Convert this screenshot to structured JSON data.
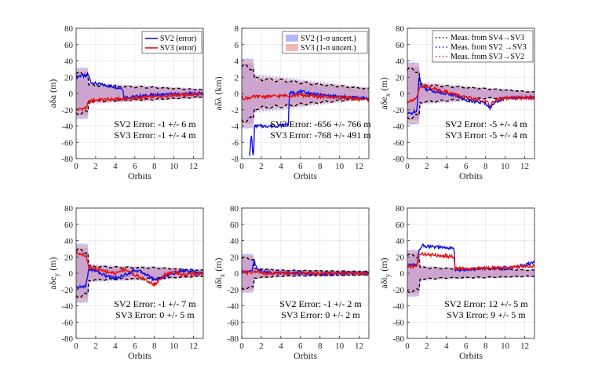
{
  "colors": {
    "sv2": "#1010e0",
    "sv3": "#e81010",
    "sv2_band": "#b6b6f6",
    "sv3_band": "#f6b6b6",
    "overlap_band": "#c6a0cf",
    "dashed": "#000000",
    "grid": "#e6e6e6"
  },
  "legends": {
    "error": [
      "SV2 (error)",
      "SV3 (error)"
    ],
    "uncert": [
      "SV2 (1-σ uncert.)",
      "SV3 (1-σ uncert.)"
    ],
    "meas": [
      "Meas. from SV4→SV3",
      "Meas. from SV2 →SV3",
      "Meas. from SV3→SV2"
    ]
  },
  "chart_data": [
    {
      "type": "line",
      "xlabel": "Orbits",
      "ylabel": "aδa (m)",
      "xlim": [
        0,
        13
      ],
      "ylim": [
        -80,
        80
      ],
      "xticks": [
        0,
        2,
        4,
        6,
        8,
        10,
        12
      ],
      "yticks": [
        -80,
        -60,
        -40,
        -20,
        0,
        20,
        40,
        60,
        80
      ],
      "legend": "error",
      "annotation": [
        "SV2 Error: -1 +/- 6 m",
        "SV3 Error: -1 +/- 4 m"
      ],
      "series": [
        {
          "name": "SV2",
          "x": [
            0,
            0.5,
            1.0,
            1.2,
            1.5,
            2.0,
            3.0,
            4.0,
            4.8,
            4.85,
            6.0,
            8.0,
            10.0,
            13.0
          ],
          "y": [
            20,
            22,
            21,
            25,
            14,
            12,
            10,
            8,
            6,
            -5,
            -4,
            -2,
            -1,
            0
          ]
        },
        {
          "name": "SV3",
          "x": [
            0,
            0.5,
            1.0,
            1.3,
            2.0,
            4.0,
            6.0,
            8.0,
            10.0,
            13.0
          ],
          "y": [
            -20,
            -19,
            -18,
            -10,
            -8,
            -7,
            -6,
            -4,
            -2,
            -1
          ]
        }
      ],
      "band": {
        "x": [
          0,
          1.2,
          1.3,
          4,
          8,
          13
        ],
        "halfwidth": [
          33,
          33,
          14,
          12,
          10,
          6
        ],
        "center": [
          0,
          0,
          0,
          0,
          0,
          0
        ]
      }
    },
    {
      "type": "line",
      "xlabel": "Orbits",
      "ylabel": "aδλ (km)",
      "xlim": [
        0,
        13
      ],
      "ylim": [
        -8,
        8
      ],
      "xticks": [
        0,
        2,
        4,
        6,
        8,
        10,
        12
      ],
      "yticks": [
        -8,
        -6,
        -4,
        -2,
        0,
        2,
        4,
        6,
        8
      ],
      "legend": "uncert",
      "annotation": [
        "SV2 Error: -656 +/- 766 m",
        "SV3 Error: -768 +/- 491 m"
      ],
      "series": [
        {
          "name": "SV2",
          "x": [
            0.8,
            1.0,
            1.1,
            1.2,
            1.3,
            1.35,
            3.0,
            3.5,
            4.8,
            4.85,
            6.0,
            8.0,
            10.0,
            13.0
          ],
          "y": [
            -7.5,
            -5,
            -7,
            -8,
            -4,
            -4,
            -4,
            -4,
            -3.8,
            0,
            0.2,
            -0.2,
            -0.4,
            -0.6
          ]
        },
        {
          "name": "SV3",
          "x": [
            0,
            1.0,
            1.3,
            2.0,
            4.0,
            6.0,
            8.0,
            10.0,
            13.0
          ],
          "y": [
            -0.6,
            -0.5,
            -0.4,
            -0.4,
            -0.3,
            -0.2,
            -0.4,
            -0.5,
            -0.8
          ]
        }
      ],
      "band": {
        "x": [
          0,
          1.2,
          1.3,
          4,
          8,
          13
        ],
        "halfwidth": [
          4.5,
          4.5,
          2.5,
          2.2,
          1.5,
          0.8
        ],
        "center": [
          0,
          0,
          0,
          0,
          0,
          0
        ]
      }
    },
    {
      "type": "line",
      "xlabel": "Orbits",
      "ylabel": "aδe_x (m)",
      "xlim": [
        0,
        13
      ],
      "ylim": [
        -80,
        80
      ],
      "xticks": [
        0,
        2,
        4,
        6,
        8,
        10,
        12
      ],
      "yticks": [
        -80,
        -60,
        -40,
        -20,
        0,
        20,
        40,
        60,
        80
      ],
      "legend": "meas",
      "annotation": [
        "SV2 Error: -5 +/- 4 m",
        "SV3 Error: -5 +/- 4 m"
      ],
      "series": [
        {
          "name": "SV2",
          "x": [
            0,
            0.5,
            1.0,
            1.2,
            1.4,
            2.0,
            3.0,
            4.0,
            5.0,
            6.0,
            7.0,
            8.0,
            8.5,
            9.0,
            10.0,
            13.0
          ],
          "y": [
            -25,
            -24,
            -20,
            25,
            10,
            5,
            2,
            0,
            -3,
            -8,
            -10,
            -12,
            -18,
            -10,
            -6,
            -5
          ]
        },
        {
          "name": "SV3",
          "x": [
            0,
            0.5,
            1.0,
            1.3,
            2.0,
            3.0,
            4.0,
            6.0,
            8.0,
            8.5,
            9.0,
            10.0,
            13.0
          ],
          "y": [
            -10,
            -8,
            -5,
            8,
            8,
            5,
            2,
            -5,
            -10,
            -14,
            -8,
            -6,
            -5
          ]
        }
      ],
      "band": {
        "x": [
          0,
          1.2,
          1.3,
          4,
          8,
          13
        ],
        "halfwidth": [
          40,
          40,
          15,
          12,
          8,
          5
        ],
        "center": [
          0,
          0,
          0,
          0,
          0,
          -2
        ]
      }
    },
    {
      "type": "line",
      "xlabel": "Orbits",
      "ylabel": "aδe_y (m)",
      "xlim": [
        0,
        13
      ],
      "ylim": [
        -80,
        80
      ],
      "xticks": [
        0,
        2,
        4,
        6,
        8,
        10,
        12
      ],
      "yticks": [
        -80,
        -60,
        -40,
        -20,
        0,
        20,
        40,
        60,
        80
      ],
      "legend": "none",
      "annotation": [
        "SV2 Error: -1 +/- 7 m",
        "SV3 Error: 0 +/- 5 m"
      ],
      "series": [
        {
          "name": "SV2",
          "x": [
            0,
            0.5,
            1.0,
            1.3,
            2.0,
            3.0,
            4.0,
            5.0,
            6.0,
            7.0,
            8.0,
            9.0,
            10.0,
            11.0,
            13.0
          ],
          "y": [
            -18,
            -17,
            -15,
            5,
            3,
            -3,
            -6,
            -2,
            4,
            0,
            -8,
            -4,
            0,
            3,
            0
          ]
        },
        {
          "name": "SV3",
          "x": [
            0,
            0.5,
            1.0,
            1.3,
            2.0,
            3.0,
            4.0,
            5.0,
            6.0,
            7.0,
            8.0,
            9.0,
            10.0,
            11.0,
            13.0
          ],
          "y": [
            25,
            24,
            22,
            8,
            5,
            2,
            0,
            5,
            -2,
            -8,
            -14,
            -3,
            2,
            -2,
            0
          ]
        }
      ],
      "band": {
        "x": [
          0,
          1.2,
          1.3,
          4,
          8,
          13
        ],
        "halfwidth": [
          38,
          38,
          12,
          10,
          9,
          5
        ],
        "center": [
          0,
          0,
          0,
          0,
          0,
          0
        ]
      }
    },
    {
      "type": "line",
      "xlabel": "Orbits",
      "ylabel": "aδi_x (m)",
      "xlim": [
        0,
        13
      ],
      "ylim": [
        -80,
        80
      ],
      "xticks": [
        0,
        2,
        4,
        6,
        8,
        10,
        12
      ],
      "yticks": [
        -80,
        -60,
        -40,
        -20,
        0,
        20,
        40,
        60,
        80
      ],
      "legend": "none",
      "annotation": [
        "SV2 Error: -1 +/- 2 m",
        "SV3 Error: 0 +/- 2 m"
      ],
      "series": [
        {
          "name": "SV2",
          "x": [
            0,
            0.5,
            1.0,
            1.3,
            1.6,
            2.5,
            4.0,
            6.0,
            8.0,
            10.0,
            13.0
          ],
          "y": [
            2,
            2,
            2,
            15,
            4,
            1,
            0,
            0,
            -1,
            0,
            0
          ]
        },
        {
          "name": "SV3",
          "x": [
            0,
            0.5,
            1.0,
            1.3,
            2.0,
            4.0,
            6.0,
            8.0,
            10.0,
            13.0
          ],
          "y": [
            1,
            1,
            1,
            3,
            0,
            0,
            0,
            0,
            0,
            0
          ]
        }
      ],
      "band": {
        "x": [
          0,
          1.2,
          1.3,
          4,
          8,
          13
        ],
        "halfwidth": [
          25,
          25,
          8,
          5,
          4,
          3
        ],
        "center": [
          0,
          0,
          0,
          0,
          0,
          0
        ]
      }
    },
    {
      "type": "line",
      "xlabel": "Orbits",
      "ylabel": "aδi_y (m)",
      "xlim": [
        0,
        13
      ],
      "ylim": [
        -80,
        80
      ],
      "xticks": [
        0,
        2,
        4,
        6,
        8,
        10,
        12
      ],
      "yticks": [
        -80,
        -60,
        -40,
        -20,
        0,
        20,
        40,
        60,
        80
      ],
      "legend": "none",
      "annotation": [
        "SV2 Error: 12 +/- 5 m",
        "SV3 Error: 9 +/- 5 m"
      ],
      "series": [
        {
          "name": "SV2",
          "x": [
            0,
            0.5,
            1.0,
            1.2,
            1.5,
            2.0,
            3.0,
            4.0,
            4.8,
            4.85,
            6.0,
            8.0,
            10.0,
            12.0,
            13.0
          ],
          "y": [
            10,
            10,
            10,
            28,
            34,
            33,
            32,
            31,
            30,
            5,
            4,
            6,
            6,
            10,
            13
          ]
        },
        {
          "name": "SV3",
          "x": [
            0,
            0.5,
            1.0,
            1.2,
            1.5,
            2.0,
            3.0,
            4.0,
            4.8,
            4.85,
            6.0,
            8.0,
            10.0,
            12.0,
            13.0
          ],
          "y": [
            8,
            8,
            10,
            22,
            24,
            23,
            22,
            21,
            20,
            6,
            5,
            6,
            7,
            8,
            9
          ]
        }
      ],
      "band": {
        "x": [
          0,
          1.2,
          1.3,
          4,
          8,
          13
        ],
        "halfwidth": [
          30,
          30,
          10,
          8,
          7,
          5
        ],
        "center": [
          0,
          0,
          0,
          0,
          0,
          0
        ]
      }
    }
  ]
}
